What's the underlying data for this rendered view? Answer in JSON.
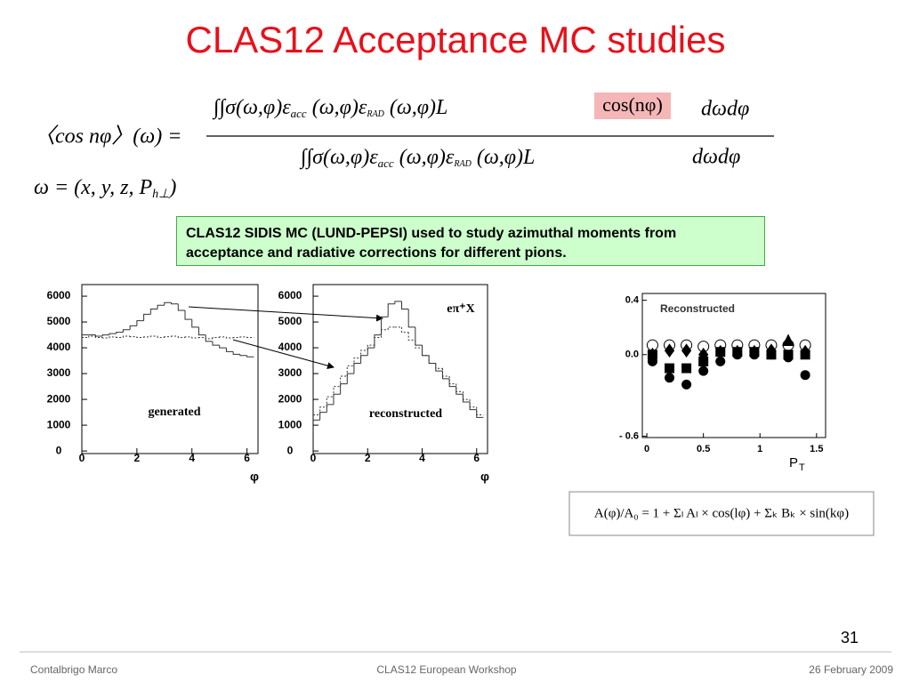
{
  "title": "CLAS12 Acceptance MC studies",
  "equation": {
    "lhs": "〈cos nφ〉(ω) =",
    "numerator": [
      "∫∫σ(ω,φ)ε",
      "acc",
      " (ω,φ)ε",
      "RAD",
      " (ω,φ)L"
    ],
    "weight": "cos(nφ)",
    "differential": "dωdφ",
    "denominator": [
      "∫∫σ(ω,φ)ε",
      "acc",
      " (ω,φ)ε",
      "RAD",
      " (ω,φ)L"
    ],
    "denominator_differential": "dωdφ",
    "omega": [
      "ω = (x, y, z, P",
      "h⊥",
      ")"
    ]
  },
  "note": "CLAS12 SIDIS MC (LUND-PEPSI) used to study azimuthal moments from acceptance and radiative corrections for different pions.",
  "chart_data": [
    {
      "type": "histogram",
      "annotation": "generated",
      "xlabel": "φ",
      "bins": [
        0,
        0.25,
        0.5,
        0.75,
        1,
        1.25,
        1.5,
        1.75,
        2,
        2.25,
        2.5,
        2.75,
        3,
        3.25,
        3.5,
        3.75,
        4,
        4.25,
        4.5,
        4.75,
        5,
        5.25,
        5.5,
        5.75,
        6,
        6.25
      ],
      "series": [
        {
          "color": "#333333",
          "style": "solid",
          "values": [
            4500,
            4500,
            4450,
            4500,
            4550,
            4600,
            4700,
            4850,
            5050,
            5300,
            5500,
            5650,
            5750,
            5700,
            5450,
            5100,
            4800,
            4500,
            4250,
            4100,
            4000,
            3850,
            3750,
            3700,
            3650
          ]
        },
        {
          "color": "#333333",
          "style": "dotted",
          "values": [
            4400,
            4450,
            4400,
            4380,
            4420,
            4400,
            4450,
            4430,
            4400,
            4420,
            4450,
            4400,
            4430,
            4450,
            4400,
            4420,
            4380,
            4400,
            4350,
            4400,
            4420,
            4380,
            4400,
            4420,
            4400
          ]
        }
      ],
      "xlim": [
        0,
        6.4
      ],
      "xticks": [
        0,
        2,
        4,
        6
      ],
      "ylim": [
        -100,
        6450
      ],
      "yticks": [
        0,
        1000,
        2000,
        3000,
        4000,
        5000,
        6000
      ]
    },
    {
      "type": "histogram",
      "annotation": "reconstructed",
      "label": "eπ⁺X",
      "xlabel": "φ",
      "bins": [
        0,
        0.25,
        0.5,
        0.75,
        1,
        1.25,
        1.5,
        1.75,
        2,
        2.25,
        2.5,
        2.75,
        3,
        3.25,
        3.5,
        3.75,
        4,
        4.25,
        4.5,
        4.75,
        5,
        5.25,
        5.5,
        5.75,
        6,
        6.25
      ],
      "series": [
        {
          "color": "#333333",
          "style": "solid",
          "values": [
            1200,
            1500,
            1800,
            2200,
            2600,
            3000,
            3400,
            3700,
            4000,
            4500,
            5200,
            5700,
            5800,
            5500,
            4800,
            4100,
            3700,
            3400,
            3100,
            2800,
            2500,
            2200,
            1900,
            1600,
            1300
          ]
        },
        {
          "color": "#333333",
          "style": "dotted",
          "values": [
            1400,
            1700,
            2100,
            2500,
            2900,
            3300,
            3600,
            3900,
            4100,
            4400,
            4700,
            4800,
            4800,
            4600,
            4300,
            4000,
            3700,
            3400,
            3200,
            2900,
            2600,
            2300,
            2000,
            1700,
            1400
          ]
        }
      ],
      "xlim": [
        0,
        6.4
      ],
      "xticks": [
        0,
        2,
        4,
        6
      ],
      "ylim": [
        -100,
        6450
      ],
      "yticks": [
        0,
        1000,
        2000,
        3000,
        4000,
        5000,
        6000
      ]
    },
    {
      "type": "scatter",
      "annotation": "Reconstructed",
      "xlabel": "P",
      "xlabel_sub": "T",
      "x": [
        0.05,
        0.2,
        0.35,
        0.5,
        0.65,
        0.8,
        0.95,
        1.1,
        1.25,
        1.4
      ],
      "series": [
        {
          "marker": "open-circle",
          "color": "#000000",
          "values": [
            0.07,
            0.07,
            0.07,
            0.06,
            0.07,
            0.07,
            0.07,
            0.07,
            0.07,
            0.07
          ]
        },
        {
          "marker": "diamond",
          "color": "#000000",
          "values": [
            0.0,
            0.03,
            0.03,
            0.0,
            0.02,
            0.02,
            0.02,
            0.03,
            null,
            0.02
          ]
        },
        {
          "marker": "square",
          "color": "#000000",
          "values": [
            0.0,
            -0.1,
            -0.1,
            -0.05,
            0.02,
            0.02,
            0.02,
            0.0,
            0.0,
            0.0
          ]
        },
        {
          "marker": "circle",
          "color": "#000000",
          "values": [
            -0.05,
            -0.17,
            -0.22,
            -0.12,
            -0.05,
            0.0,
            0.0,
            0.0,
            -0.02,
            -0.15
          ]
        },
        {
          "marker": "triangle",
          "color": "#000000",
          "values": [
            null,
            null,
            null,
            null,
            null,
            null,
            null,
            null,
            0.1,
            null
          ]
        }
      ],
      "xlim": [
        -0.04,
        1.58
      ],
      "xticks": [
        0,
        0.5,
        1,
        1.5
      ],
      "ylim": [
        -0.61,
        0.45
      ],
      "yticks": [
        0.4,
        {
          "value": 0,
          "label": "0.0"
        },
        {
          "value": -0.6,
          "label": "- 0.6"
        }
      ]
    }
  ],
  "fit_formula": "A(φ)/A₀ = 1 + Σₗ Aₗ × cos(lφ) + Σₖ Bₖ × sin(kφ)",
  "page_number": "31",
  "footer": {
    "left": "Contalbrigo Marco",
    "center": "CLAS12 European Workshop",
    "right": "26 February 2009"
  }
}
